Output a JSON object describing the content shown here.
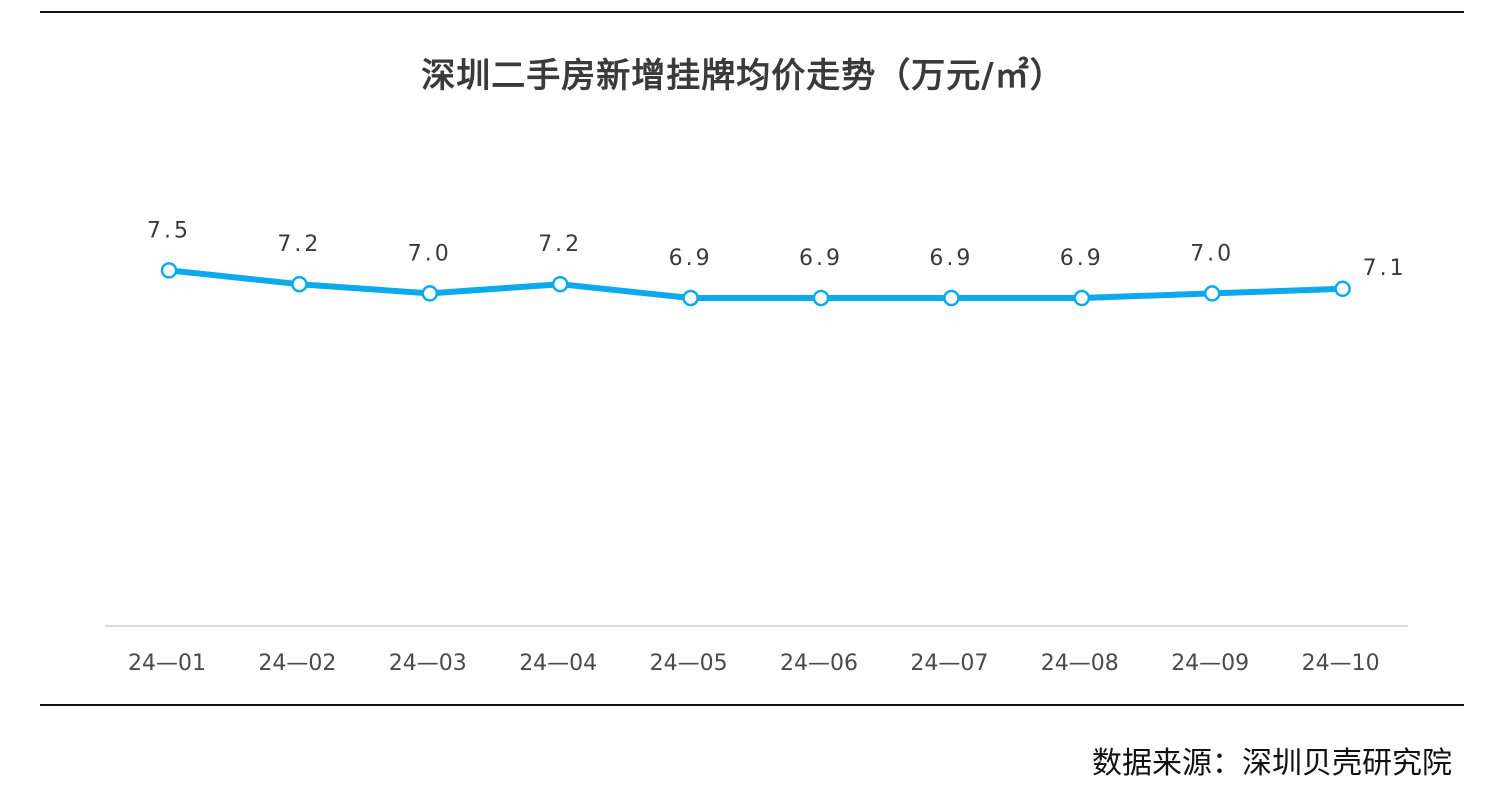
{
  "chart_data": {
    "type": "line",
    "title": "深圳二手房新增挂牌均价走势（万元/㎡）",
    "categories": [
      "24-01",
      "24-02",
      "24-03",
      "24-04",
      "24-05",
      "24-06",
      "24-07",
      "24-08",
      "24-09",
      "24-10"
    ],
    "tick_labels": [
      "24—01",
      "24—02",
      "24—03",
      "24—04",
      "24—05",
      "24—06",
      "24—07",
      "24—08",
      "24—09",
      "24—10"
    ],
    "values": [
      7.5,
      7.2,
      7.0,
      7.2,
      6.9,
      6.9,
      6.9,
      6.9,
      7.0,
      7.1
    ],
    "data_labels": [
      "7.5",
      "7.2",
      "7.0",
      "7.2",
      "6.9",
      "6.9",
      "6.9",
      "6.9",
      "7.0",
      "7.1"
    ],
    "xlabel": "",
    "ylabel": "",
    "grid": false,
    "legend": "none",
    "line_color": "#0aaaec",
    "marker_fill": "#ffffff"
  },
  "source_note": "数据来源：深圳贝壳研究院"
}
